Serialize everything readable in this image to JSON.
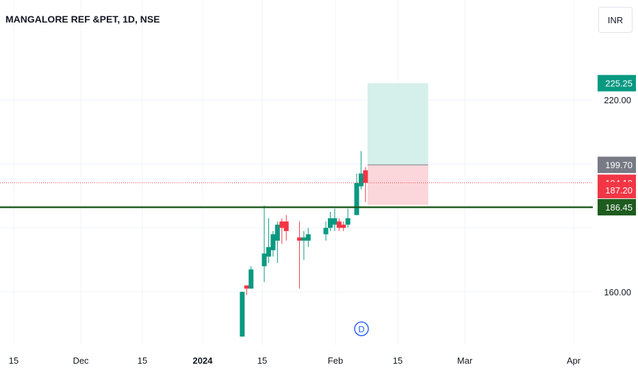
{
  "header": {
    "title": "MANGALORE REF &PET, 1D, NSE",
    "currency": "INR"
  },
  "colors": {
    "up": "#089981",
    "down": "#f23645",
    "grid": "#f0f3fa",
    "axis_text": "#131722",
    "support_line": "#1e5b1e",
    "target_zone": "#d5efea",
    "stop_zone": "#fbd6da",
    "entry_line": "#787b86",
    "event_marker": "#2962ff"
  },
  "chart_data": {
    "type": "candlestick",
    "title": "MANGALORE REF &PET, 1D, NSE",
    "currency": "INR",
    "y_range": [
      145,
      241
    ],
    "y_ticks": [
      160,
      220
    ],
    "x_ticks": [
      "15",
      "Dec",
      "15",
      "2024",
      "15",
      "Feb",
      "15",
      "Mar",
      "Apr"
    ],
    "candles": [
      {
        "date": "2024-01-10",
        "open": 146,
        "high": 160,
        "low": 146,
        "close": 160
      },
      {
        "date": "2024-01-11",
        "open": 162,
        "high": 162,
        "low": 159,
        "close": 161
      },
      {
        "date": "2024-01-12",
        "open": 161,
        "high": 168,
        "low": 161,
        "close": 167
      },
      {
        "date": "2024-01-15",
        "open": 168,
        "high": 187,
        "low": 163,
        "close": 172
      },
      {
        "date": "2024-01-16",
        "open": 171,
        "high": 183,
        "low": 169,
        "close": 174
      },
      {
        "date": "2024-01-17",
        "open": 173,
        "high": 179,
        "low": 171,
        "close": 178
      },
      {
        "date": "2024-01-18",
        "open": 176,
        "high": 182,
        "low": 169,
        "close": 181
      },
      {
        "date": "2024-01-19",
        "open": 182,
        "high": 183,
        "low": 175,
        "close": 180
      },
      {
        "date": "2024-01-20",
        "open": 182,
        "high": 184,
        "low": 176,
        "close": 179
      },
      {
        "date": "2024-01-23",
        "open": 177,
        "high": 182,
        "low": 161,
        "close": 176
      },
      {
        "date": "2024-01-24",
        "open": 176,
        "high": 179,
        "low": 170,
        "close": 177
      },
      {
        "date": "2024-01-25",
        "open": 176,
        "high": 180,
        "low": 174,
        "close": 178
      },
      {
        "date": "2024-01-29",
        "open": 178,
        "high": 182,
        "low": 176,
        "close": 180
      },
      {
        "date": "2024-01-30",
        "open": 180,
        "high": 185,
        "low": 179,
        "close": 183
      },
      {
        "date": "2024-01-31",
        "open": 181,
        "high": 186,
        "low": 179,
        "close": 183
      },
      {
        "date": "2024-02-01",
        "open": 182,
        "high": 183,
        "low": 179,
        "close": 180
      },
      {
        "date": "2024-02-02",
        "open": 181,
        "high": 182,
        "low": 179,
        "close": 180
      },
      {
        "date": "2024-02-03",
        "open": 181,
        "high": 186,
        "low": 180,
        "close": 183
      },
      {
        "date": "2024-02-05",
        "open": 184,
        "high": 197,
        "low": 184,
        "close": 194
      },
      {
        "date": "2024-02-06",
        "open": 193,
        "high": 204,
        "low": 192,
        "close": 197
      },
      {
        "date": "2024-02-07",
        "open": 198,
        "high": 199,
        "low": 188,
        "close": 194.1
      }
    ],
    "support_level": 186.45,
    "position": {
      "entry": 199.7,
      "target": 225.25,
      "stop": 187.2,
      "start_date": "2024-02-07",
      "end_date": "2024-02-20"
    },
    "last_price": 194.1,
    "price_labels": [
      "225.25",
      "199.70",
      "194.10",
      "187.20",
      "186.45"
    ],
    "event_marker": {
      "label": "D",
      "date": "2024-02-05"
    }
  }
}
